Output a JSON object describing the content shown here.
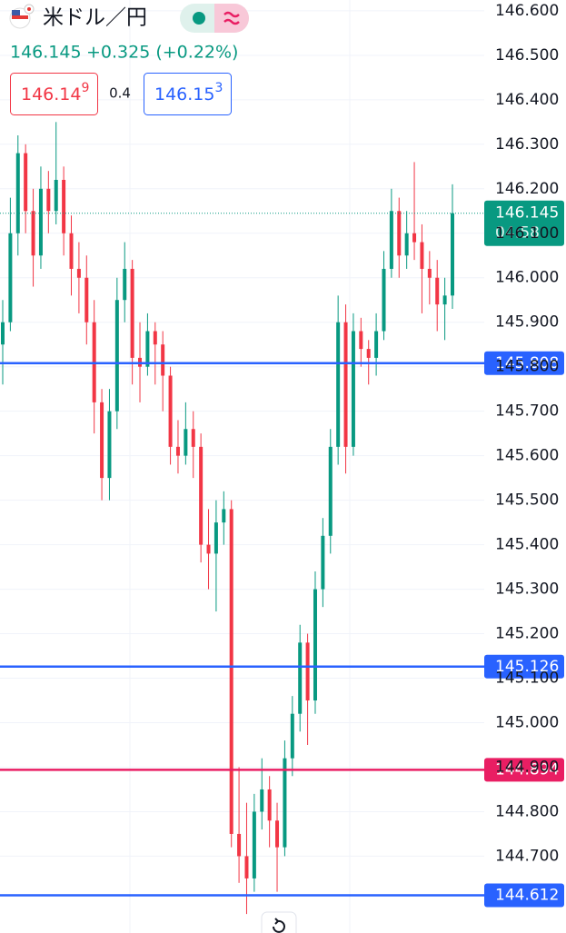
{
  "header": {
    "symbol": "米ドル／円",
    "price": "146.145",
    "change": "+0.325 (+0.22%)",
    "bid": {
      "main": "146.14",
      "pip": "9"
    },
    "spread": "0.4",
    "ask": {
      "main": "146.15",
      "pip": "3"
    }
  },
  "chart_data": {
    "type": "candlestick",
    "up_color": "#089981",
    "down_color": "#f23645",
    "ylim": [
      144.56,
      146.612
    ],
    "yticks": [
      {
        "value": 146.6,
        "label": "146.600"
      },
      {
        "value": 146.5,
        "label": "146.500"
      },
      {
        "value": 146.4,
        "label": "146.400"
      },
      {
        "value": 146.3,
        "label": "146.300"
      },
      {
        "value": 146.2,
        "label": "146.200"
      },
      {
        "value": 146.1,
        "label": "146.100"
      },
      {
        "value": 146.0,
        "label": "146.000"
      },
      {
        "value": 145.9,
        "label": "145.900"
      },
      {
        "value": 145.8,
        "label": "145.800"
      },
      {
        "value": 145.7,
        "label": "145.700"
      },
      {
        "value": 145.6,
        "label": "145.600"
      },
      {
        "value": 145.5,
        "label": "145.500"
      },
      {
        "value": 145.4,
        "label": "145.400"
      },
      {
        "value": 145.3,
        "label": "145.300"
      },
      {
        "value": 145.2,
        "label": "145.200"
      },
      {
        "value": 145.1,
        "label": "145.100"
      },
      {
        "value": 145.0,
        "label": "145.000"
      },
      {
        "value": 144.9,
        "label": "144.900"
      },
      {
        "value": 144.8,
        "label": "144.800"
      },
      {
        "value": 144.7,
        "label": "144.700"
      }
    ],
    "current_price": {
      "value": 146.145,
      "countdown": "04:58",
      "color": "#089981"
    },
    "price_lines": [
      {
        "value": 145.808,
        "color": "#2962ff"
      },
      {
        "value": 145.126,
        "color": "#2962ff"
      },
      {
        "value": 144.894,
        "color": "#e91e63"
      },
      {
        "value": 144.612,
        "color": "#2962ff"
      }
    ],
    "candles": [
      {
        "o": 145.85,
        "h": 145.95,
        "l": 145.76,
        "c": 145.9
      },
      {
        "o": 145.9,
        "h": 146.18,
        "l": 145.88,
        "c": 146.1
      },
      {
        "o": 146.1,
        "h": 146.32,
        "l": 146.05,
        "c": 146.28
      },
      {
        "o": 146.28,
        "h": 146.3,
        "l": 146.1,
        "c": 146.15
      },
      {
        "o": 146.15,
        "h": 146.2,
        "l": 145.98,
        "c": 146.05
      },
      {
        "o": 146.05,
        "h": 146.25,
        "l": 146.02,
        "c": 146.2
      },
      {
        "o": 146.2,
        "h": 146.24,
        "l": 146.1,
        "c": 146.15
      },
      {
        "o": 146.15,
        "h": 146.35,
        "l": 146.12,
        "c": 146.22
      },
      {
        "o": 146.22,
        "h": 146.25,
        "l": 146.05,
        "c": 146.1
      },
      {
        "o": 146.1,
        "h": 146.14,
        "l": 145.96,
        "c": 146.02
      },
      {
        "o": 146.02,
        "h": 146.08,
        "l": 145.92,
        "c": 146.0
      },
      {
        "o": 146.0,
        "h": 146.05,
        "l": 145.85,
        "c": 145.9
      },
      {
        "o": 145.9,
        "h": 145.95,
        "l": 145.65,
        "c": 145.72
      },
      {
        "o": 145.72,
        "h": 145.75,
        "l": 145.5,
        "c": 145.55
      },
      {
        "o": 145.55,
        "h": 145.75,
        "l": 145.5,
        "c": 145.7
      },
      {
        "o": 145.7,
        "h": 146.0,
        "l": 145.66,
        "c": 145.95
      },
      {
        "o": 145.95,
        "h": 146.08,
        "l": 145.9,
        "c": 146.02
      },
      {
        "o": 146.02,
        "h": 146.04,
        "l": 145.76,
        "c": 145.82
      },
      {
        "o": 145.82,
        "h": 145.9,
        "l": 145.72,
        "c": 145.8
      },
      {
        "o": 145.8,
        "h": 145.92,
        "l": 145.78,
        "c": 145.88
      },
      {
        "o": 145.88,
        "h": 145.9,
        "l": 145.76,
        "c": 145.85
      },
      {
        "o": 145.85,
        "h": 145.88,
        "l": 145.7,
        "c": 145.78
      },
      {
        "o": 145.78,
        "h": 145.8,
        "l": 145.58,
        "c": 145.62
      },
      {
        "o": 145.62,
        "h": 145.68,
        "l": 145.56,
        "c": 145.6
      },
      {
        "o": 145.6,
        "h": 145.72,
        "l": 145.58,
        "c": 145.66
      },
      {
        "o": 145.66,
        "h": 145.7,
        "l": 145.55,
        "c": 145.62
      },
      {
        "o": 145.62,
        "h": 145.65,
        "l": 145.36,
        "c": 145.4
      },
      {
        "o": 145.4,
        "h": 145.48,
        "l": 145.3,
        "c": 145.38
      },
      {
        "o": 145.38,
        "h": 145.5,
        "l": 145.25,
        "c": 145.45
      },
      {
        "o": 145.45,
        "h": 145.52,
        "l": 145.4,
        "c": 145.48
      },
      {
        "o": 145.48,
        "h": 145.5,
        "l": 144.72,
        "c": 144.75
      },
      {
        "o": 144.75,
        "h": 144.9,
        "l": 144.64,
        "c": 144.7
      },
      {
        "o": 144.7,
        "h": 144.82,
        "l": 144.57,
        "c": 144.65
      },
      {
        "o": 144.65,
        "h": 144.84,
        "l": 144.62,
        "c": 144.8
      },
      {
        "o": 144.8,
        "h": 144.92,
        "l": 144.76,
        "c": 144.85
      },
      {
        "o": 144.85,
        "h": 144.88,
        "l": 144.72,
        "c": 144.78
      },
      {
        "o": 144.78,
        "h": 144.82,
        "l": 144.62,
        "c": 144.72
      },
      {
        "o": 144.72,
        "h": 144.96,
        "l": 144.7,
        "c": 144.92
      },
      {
        "o": 144.92,
        "h": 145.06,
        "l": 144.88,
        "c": 145.02
      },
      {
        "o": 145.02,
        "h": 145.22,
        "l": 144.98,
        "c": 145.18
      },
      {
        "o": 145.18,
        "h": 145.2,
        "l": 144.95,
        "c": 145.05
      },
      {
        "o": 145.05,
        "h": 145.34,
        "l": 145.02,
        "c": 145.3
      },
      {
        "o": 145.3,
        "h": 145.46,
        "l": 145.26,
        "c": 145.42
      },
      {
        "o": 145.42,
        "h": 145.66,
        "l": 145.38,
        "c": 145.62
      },
      {
        "o": 145.62,
        "h": 145.96,
        "l": 145.58,
        "c": 145.9
      },
      {
        "o": 145.9,
        "h": 145.94,
        "l": 145.56,
        "c": 145.62
      },
      {
        "o": 145.62,
        "h": 145.92,
        "l": 145.6,
        "c": 145.88
      },
      {
        "o": 145.88,
        "h": 145.91,
        "l": 145.8,
        "c": 145.84
      },
      {
        "o": 145.84,
        "h": 145.86,
        "l": 145.76,
        "c": 145.82
      },
      {
        "o": 145.82,
        "h": 145.92,
        "l": 145.78,
        "c": 145.88
      },
      {
        "o": 145.88,
        "h": 146.06,
        "l": 145.86,
        "c": 146.02
      },
      {
        "o": 146.02,
        "h": 146.2,
        "l": 146.0,
        "c": 146.15
      },
      {
        "o": 146.15,
        "h": 146.18,
        "l": 146.0,
        "c": 146.05
      },
      {
        "o": 146.05,
        "h": 146.15,
        "l": 146.02,
        "c": 146.1
      },
      {
        "o": 146.1,
        "h": 146.26,
        "l": 146.04,
        "c": 146.08
      },
      {
        "o": 146.08,
        "h": 146.12,
        "l": 145.92,
        "c": 146.02
      },
      {
        "o": 146.02,
        "h": 146.06,
        "l": 145.94,
        "c": 146.0
      },
      {
        "o": 146.0,
        "h": 146.04,
        "l": 145.88,
        "c": 145.94
      },
      {
        "o": 145.94,
        "h": 146.0,
        "l": 145.86,
        "c": 145.96
      },
      {
        "o": 145.96,
        "h": 146.21,
        "l": 145.93,
        "c": 146.145
      }
    ]
  }
}
